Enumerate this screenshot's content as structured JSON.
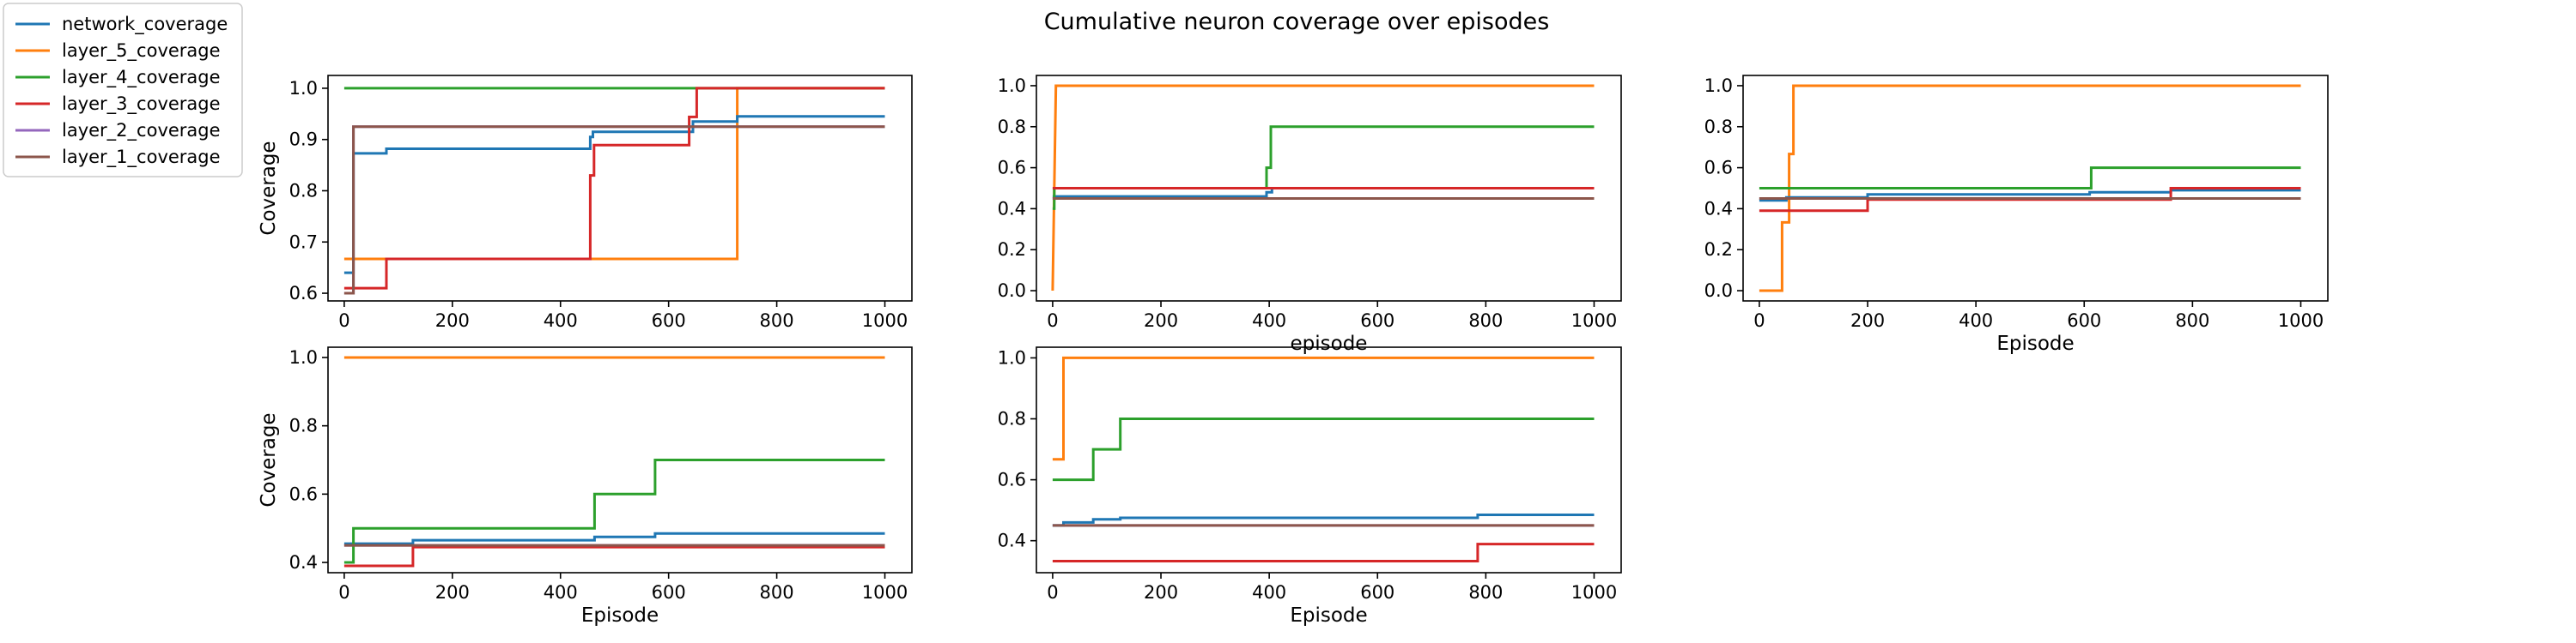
{
  "figure": {
    "title": "Cumulative neuron coverage over episodes"
  },
  "legend": {
    "placement": "upper-left-outside",
    "entries": [
      {
        "name": "network_coverage",
        "color": "#1f77b4"
      },
      {
        "name": "layer_5_coverage",
        "color": "#ff7f0e"
      },
      {
        "name": "layer_4_coverage",
        "color": "#2ca02c"
      },
      {
        "name": "layer_3_coverage",
        "color": "#d62728"
      },
      {
        "name": "layer_2_coverage",
        "color": "#9467bd"
      },
      {
        "name": "layer_1_coverage",
        "color": "#8c564b"
      }
    ]
  },
  "chart_data": [
    {
      "type": "line",
      "xlabel": "",
      "ylabel": "Coverage",
      "xlim": [
        -30,
        1050
      ],
      "ylim": [
        0.585,
        1.025
      ],
      "xticks": [
        0,
        200,
        400,
        600,
        800,
        1000
      ],
      "yticks": [
        0.6,
        0.7,
        0.8,
        0.9,
        1.0
      ],
      "series": [
        {
          "name": "layer_2_coverage",
          "points": [
            [
              0,
              0.6
            ],
            [
              17,
              0.6
            ],
            [
              17,
              0.925
            ],
            [
              1000,
              0.925
            ]
          ]
        },
        {
          "name": "layer_5_coverage",
          "points": [
            [
              0,
              0.667
            ],
            [
              727,
              0.667
            ],
            [
              727,
              1.0
            ],
            [
              1000,
              1.0
            ]
          ]
        },
        {
          "name": "network_coverage",
          "points": [
            [
              0,
              0.64
            ],
            [
              17,
              0.64
            ],
            [
              17,
              0.873
            ],
            [
              78,
              0.873
            ],
            [
              78,
              0.882
            ],
            [
              455,
              0.882
            ],
            [
              455,
              0.905
            ],
            [
              460,
              0.905
            ],
            [
              460,
              0.915
            ],
            [
              645,
              0.915
            ],
            [
              645,
              0.935
            ],
            [
              727,
              0.935
            ],
            [
              727,
              0.945
            ],
            [
              1000,
              0.945
            ]
          ]
        },
        {
          "name": "layer_4_coverage",
          "points": [
            [
              0,
              1.0
            ],
            [
              1000,
              1.0
            ]
          ]
        },
        {
          "name": "layer_3_coverage",
          "points": [
            [
              0,
              0.61
            ],
            [
              78,
              0.61
            ],
            [
              78,
              0.667
            ],
            [
              455,
              0.667
            ],
            [
              455,
              0.83
            ],
            [
              462,
              0.83
            ],
            [
              462,
              0.889
            ],
            [
              638,
              0.889
            ],
            [
              638,
              0.944
            ],
            [
              652,
              0.944
            ],
            [
              652,
              1.0
            ],
            [
              1000,
              1.0
            ]
          ]
        },
        {
          "name": "layer_1_coverage",
          "points": [
            [
              0,
              0.6
            ],
            [
              17,
              0.6
            ],
            [
              17,
              0.925
            ],
            [
              1000,
              0.925
            ]
          ]
        }
      ]
    },
    {
      "type": "line",
      "xlabel": "episode",
      "ylabel": "",
      "xlim": [
        -30,
        1050
      ],
      "ylim": [
        -0.05,
        1.05
      ],
      "xticks": [
        0,
        200,
        400,
        600,
        800,
        1000
      ],
      "yticks": [
        0.0,
        0.2,
        0.4,
        0.6,
        0.8,
        1.0
      ],
      "series": [
        {
          "name": "layer_2_coverage",
          "points": [
            [
              0,
              0.45
            ],
            [
              1000,
              0.45
            ]
          ]
        },
        {
          "name": "layer_5_coverage",
          "points": [
            [
              0,
              0.0
            ],
            [
              6,
              1.0
            ],
            [
              1000,
              1.0
            ]
          ]
        },
        {
          "name": "network_coverage",
          "points": [
            [
              0,
              0.46
            ],
            [
              395,
              0.46
            ],
            [
              395,
              0.48
            ],
            [
              405,
              0.48
            ],
            [
              405,
              0.5
            ],
            [
              1000,
              0.5
            ]
          ]
        },
        {
          "name": "layer_4_coverage",
          "points": [
            [
              0,
              0.4
            ],
            [
              3,
              0.4
            ],
            [
              3,
              0.5
            ],
            [
              395,
              0.5
            ],
            [
              395,
              0.6
            ],
            [
              403,
              0.6
            ],
            [
              403,
              0.8
            ],
            [
              1000,
              0.8
            ]
          ]
        },
        {
          "name": "layer_3_coverage",
          "points": [
            [
              0,
              0.5
            ],
            [
              1000,
              0.5
            ]
          ]
        },
        {
          "name": "layer_1_coverage",
          "points": [
            [
              0,
              0.45
            ],
            [
              1000,
              0.45
            ]
          ]
        }
      ]
    },
    {
      "type": "line",
      "xlabel": "Episode",
      "ylabel": "",
      "xlim": [
        -30,
        1050
      ],
      "ylim": [
        -0.05,
        1.05
      ],
      "xticks": [
        0,
        200,
        400,
        600,
        800,
        1000
      ],
      "yticks": [
        0.0,
        0.2,
        0.4,
        0.6,
        0.8,
        1.0
      ],
      "series": [
        {
          "name": "layer_2_coverage",
          "points": [
            [
              0,
              0.45
            ],
            [
              1000,
              0.45
            ]
          ]
        },
        {
          "name": "layer_5_coverage",
          "points": [
            [
              0,
              0.0
            ],
            [
              42,
              0.0
            ],
            [
              42,
              0.333
            ],
            [
              55,
              0.333
            ],
            [
              55,
              0.667
            ],
            [
              63,
              0.667
            ],
            [
              63,
              1.0
            ],
            [
              1000,
              1.0
            ]
          ]
        },
        {
          "name": "network_coverage",
          "points": [
            [
              0,
              0.44
            ],
            [
              50,
              0.44
            ],
            [
              50,
              0.455
            ],
            [
              200,
              0.455
            ],
            [
              200,
              0.47
            ],
            [
              610,
              0.47
            ],
            [
              610,
              0.48
            ],
            [
              760,
              0.48
            ],
            [
              760,
              0.49
            ],
            [
              1000,
              0.49
            ]
          ]
        },
        {
          "name": "layer_4_coverage",
          "points": [
            [
              0,
              0.5
            ],
            [
              613,
              0.5
            ],
            [
              613,
              0.6
            ],
            [
              1000,
              0.6
            ]
          ]
        },
        {
          "name": "layer_3_coverage",
          "points": [
            [
              0,
              0.39
            ],
            [
              200,
              0.39
            ],
            [
              200,
              0.445
            ],
            [
              760,
              0.445
            ],
            [
              760,
              0.5
            ],
            [
              1000,
              0.5
            ]
          ]
        },
        {
          "name": "layer_1_coverage",
          "points": [
            [
              0,
              0.45
            ],
            [
              1000,
              0.45
            ]
          ]
        }
      ]
    },
    {
      "type": "line",
      "xlabel": "Episode",
      "ylabel": "Coverage",
      "xlim": [
        -30,
        1050
      ],
      "ylim": [
        0.37,
        1.03
      ],
      "xticks": [
        0,
        200,
        400,
        600,
        800,
        1000
      ],
      "yticks": [
        0.4,
        0.6,
        0.8,
        1.0
      ],
      "series": [
        {
          "name": "layer_2_coverage",
          "points": [
            [
              0,
              0.45
            ],
            [
              1000,
              0.45
            ]
          ]
        },
        {
          "name": "layer_5_coverage",
          "points": [
            [
              0,
              1.0
            ],
            [
              1000,
              1.0
            ]
          ]
        },
        {
          "name": "network_coverage",
          "points": [
            [
              0,
              0.455
            ],
            [
              127,
              0.455
            ],
            [
              127,
              0.465
            ],
            [
              463,
              0.465
            ],
            [
              463,
              0.475
            ],
            [
              575,
              0.475
            ],
            [
              575,
              0.485
            ],
            [
              1000,
              0.485
            ]
          ]
        },
        {
          "name": "layer_4_coverage",
          "points": [
            [
              0,
              0.4
            ],
            [
              17,
              0.4
            ],
            [
              17,
              0.5
            ],
            [
              463,
              0.5
            ],
            [
              463,
              0.6
            ],
            [
              575,
              0.6
            ],
            [
              575,
              0.7
            ],
            [
              1000,
              0.7
            ]
          ]
        },
        {
          "name": "layer_3_coverage",
          "points": [
            [
              0,
              0.39
            ],
            [
              127,
              0.39
            ],
            [
              127,
              0.445
            ],
            [
              1000,
              0.445
            ]
          ]
        },
        {
          "name": "layer_1_coverage",
          "points": [
            [
              0,
              0.45
            ],
            [
              1000,
              0.45
            ]
          ]
        }
      ]
    },
    {
      "type": "line",
      "xlabel": "Episode",
      "ylabel": "",
      "xlim": [
        -30,
        1050
      ],
      "ylim": [
        0.295,
        1.035
      ],
      "xticks": [
        0,
        200,
        400,
        600,
        800,
        1000
      ],
      "yticks": [
        0.4,
        0.6,
        0.8,
        1.0
      ],
      "series": [
        {
          "name": "layer_2_coverage",
          "points": [
            [
              0,
              0.45
            ],
            [
              1000,
              0.45
            ]
          ]
        },
        {
          "name": "layer_5_coverage",
          "points": [
            [
              0,
              0.667
            ],
            [
              20,
              0.667
            ],
            [
              20,
              1.0
            ],
            [
              1000,
              1.0
            ]
          ]
        },
        {
          "name": "network_coverage",
          "points": [
            [
              0,
              0.45
            ],
            [
              20,
              0.45
            ],
            [
              20,
              0.46
            ],
            [
              75,
              0.46
            ],
            [
              75,
              0.47
            ],
            [
              125,
              0.47
            ],
            [
              125,
              0.475
            ],
            [
              785,
              0.475
            ],
            [
              785,
              0.485
            ],
            [
              1000,
              0.485
            ]
          ]
        },
        {
          "name": "layer_4_coverage",
          "points": [
            [
              0,
              0.6
            ],
            [
              75,
              0.6
            ],
            [
              75,
              0.7
            ],
            [
              125,
              0.7
            ],
            [
              125,
              0.8
            ],
            [
              1000,
              0.8
            ]
          ]
        },
        {
          "name": "layer_3_coverage",
          "points": [
            [
              0,
              0.333
            ],
            [
              785,
              0.333
            ],
            [
              785,
              0.389
            ],
            [
              1000,
              0.389
            ]
          ]
        },
        {
          "name": "layer_1_coverage",
          "points": [
            [
              0,
              0.45
            ],
            [
              1000,
              0.45
            ]
          ]
        }
      ]
    }
  ]
}
